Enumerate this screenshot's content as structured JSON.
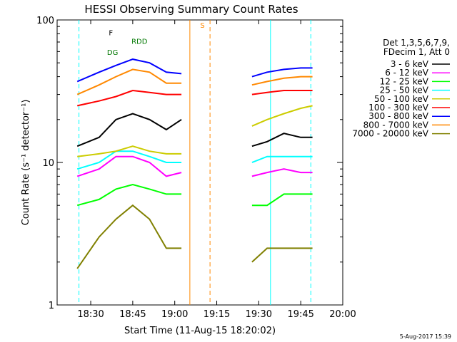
{
  "chart_data": {
    "type": "line",
    "title": "HESSI Observing Summary Count Rates",
    "xlabel": "Start Time (11-Aug-15 18:20:02)",
    "ylabel": "Count Rate (s⁻¹ detector⁻¹)",
    "footer": "5-Aug-2017 15:39",
    "yscale": "log",
    "ylim": [
      1,
      100
    ],
    "xlim_minutes": [
      18.3,
      20.0
    ],
    "x_unit": "hours (UT), 11-Aug-15",
    "x_ticks": [
      {
        "label": "18:30",
        "value": 18.5
      },
      {
        "label": "18:45",
        "value": 18.75
      },
      {
        "label": "19:00",
        "value": 19.0
      },
      {
        "label": "19:15",
        "value": 19.25
      },
      {
        "label": "19:30",
        "value": 19.5
      },
      {
        "label": "19:45",
        "value": 19.75
      },
      {
        "label": "20:00",
        "value": 20.0
      }
    ],
    "y_ticks": [
      {
        "label": "1",
        "value": 1
      },
      {
        "label": "10",
        "value": 10
      },
      {
        "label": "100",
        "value": 100
      }
    ],
    "legend": {
      "header_line1": "Det 1,3,5,6,7,9,",
      "header_line2": "FDecim 1, Att 0",
      "position": "right"
    },
    "series": [
      {
        "name": "3 - 6 keV",
        "color": "#000000",
        "segments": [
          [
            [
              18.42,
              13
            ],
            [
              18.55,
              15
            ],
            [
              18.65,
              20
            ],
            [
              18.75,
              22
            ],
            [
              18.85,
              20
            ],
            [
              18.95,
              17
            ],
            [
              19.04,
              20
            ]
          ],
          [
            [
              19.46,
              13
            ],
            [
              19.55,
              14
            ],
            [
              19.65,
              16
            ],
            [
              19.75,
              15
            ],
            [
              19.82,
              15
            ]
          ]
        ]
      },
      {
        "name": "6 - 12 keV",
        "color": "#ff00ff",
        "segments": [
          [
            [
              18.42,
              8
            ],
            [
              18.55,
              9
            ],
            [
              18.65,
              11
            ],
            [
              18.75,
              11
            ],
            [
              18.85,
              10
            ],
            [
              18.95,
              8
            ],
            [
              19.04,
              8.5
            ]
          ],
          [
            [
              19.46,
              8
            ],
            [
              19.55,
              8.5
            ],
            [
              19.65,
              9
            ],
            [
              19.75,
              8.5
            ],
            [
              19.82,
              8.5
            ]
          ]
        ]
      },
      {
        "name": "12 - 25 keV",
        "color": "#00ff00",
        "segments": [
          [
            [
              18.42,
              5
            ],
            [
              18.55,
              5.5
            ],
            [
              18.65,
              6.5
            ],
            [
              18.75,
              7
            ],
            [
              18.85,
              6.5
            ],
            [
              18.95,
              6
            ],
            [
              19.04,
              6
            ]
          ],
          [
            [
              19.46,
              5
            ],
            [
              19.55,
              5
            ],
            [
              19.65,
              6
            ],
            [
              19.75,
              6
            ],
            [
              19.82,
              6
            ]
          ]
        ]
      },
      {
        "name": "25 - 50 keV",
        "color": "#00ffff",
        "segments": [
          [
            [
              18.42,
              9
            ],
            [
              18.55,
              10
            ],
            [
              18.65,
              12
            ],
            [
              18.75,
              12
            ],
            [
              18.85,
              11
            ],
            [
              18.95,
              10
            ],
            [
              19.04,
              10
            ]
          ],
          [
            [
              19.46,
              10
            ],
            [
              19.55,
              11
            ],
            [
              19.65,
              11
            ],
            [
              19.75,
              11
            ],
            [
              19.82,
              11
            ]
          ]
        ]
      },
      {
        "name": "50 - 100 keV",
        "color": "#cccc00",
        "segments": [
          [
            [
              18.42,
              11
            ],
            [
              18.55,
              11.5
            ],
            [
              18.65,
              12
            ],
            [
              18.75,
              13
            ],
            [
              18.85,
              12
            ],
            [
              18.95,
              11.5
            ],
            [
              19.04,
              11.5
            ]
          ],
          [
            [
              19.46,
              18
            ],
            [
              19.55,
              20
            ],
            [
              19.65,
              22
            ],
            [
              19.75,
              24
            ],
            [
              19.82,
              25
            ]
          ]
        ]
      },
      {
        "name": "100 - 300 keV",
        "color": "#ff0000",
        "segments": [
          [
            [
              18.42,
              25
            ],
            [
              18.55,
              27
            ],
            [
              18.65,
              29
            ],
            [
              18.75,
              32
            ],
            [
              18.85,
              31
            ],
            [
              18.95,
              30
            ],
            [
              19.04,
              30
            ]
          ],
          [
            [
              19.46,
              30
            ],
            [
              19.55,
              31
            ],
            [
              19.65,
              32
            ],
            [
              19.75,
              32
            ],
            [
              19.82,
              32
            ]
          ]
        ]
      },
      {
        "name": "300 - 800 keV",
        "color": "#0000ff",
        "segments": [
          [
            [
              18.42,
              37
            ],
            [
              18.55,
              43
            ],
            [
              18.65,
              48
            ],
            [
              18.75,
              53
            ],
            [
              18.85,
              50
            ],
            [
              18.95,
              43
            ],
            [
              19.04,
              42
            ]
          ],
          [
            [
              19.46,
              40
            ],
            [
              19.55,
              43
            ],
            [
              19.65,
              45
            ],
            [
              19.75,
              46
            ],
            [
              19.82,
              46
            ]
          ]
        ]
      },
      {
        "name": "800 - 7000 keV",
        "color": "#ff8800",
        "segments": [
          [
            [
              18.42,
              30
            ],
            [
              18.55,
              35
            ],
            [
              18.65,
              40
            ],
            [
              18.75,
              45
            ],
            [
              18.85,
              43
            ],
            [
              18.95,
              36
            ],
            [
              19.04,
              36
            ]
          ],
          [
            [
              19.46,
              35
            ],
            [
              19.55,
              37
            ],
            [
              19.65,
              39
            ],
            [
              19.75,
              40
            ],
            [
              19.82,
              40
            ]
          ]
        ]
      },
      {
        "name": "7000 - 20000 keV",
        "color": "#808000",
        "segments": [
          [
            [
              18.42,
              1.8
            ],
            [
              18.55,
              3
            ],
            [
              18.65,
              4
            ],
            [
              18.75,
              5
            ],
            [
              18.85,
              4
            ],
            [
              18.95,
              2.5
            ],
            [
              19.04,
              2.5
            ]
          ],
          [
            [
              19.46,
              2
            ],
            [
              19.55,
              2.5
            ],
            [
              19.65,
              2.5
            ],
            [
              19.75,
              2.5
            ],
            [
              19.82,
              2.5
            ]
          ]
        ]
      }
    ],
    "annotations": [
      {
        "label": "F",
        "color": "#000000",
        "x": 18.62,
        "y": 78
      },
      {
        "label": "RDD",
        "color": "#007700",
        "x": 18.79,
        "y": 68
      },
      {
        "label": "DG",
        "color": "#007700",
        "x": 18.63,
        "y": 57
      },
      {
        "label": "S",
        "color": "#ff8800",
        "x": 19.165,
        "y": 88
      }
    ],
    "gap_markers": [
      {
        "x": 19.09,
        "color": "#ff8800",
        "style": "solid"
      },
      {
        "x": 19.21,
        "color": "#ff8800",
        "style": "dashed"
      },
      {
        "x": 18.43,
        "color": "#00ffff",
        "style": "dashed"
      },
      {
        "x": 19.57,
        "color": "#00ffff",
        "style": "solid"
      },
      {
        "x": 19.81,
        "color": "#00ffff",
        "style": "dashed"
      }
    ]
  }
}
